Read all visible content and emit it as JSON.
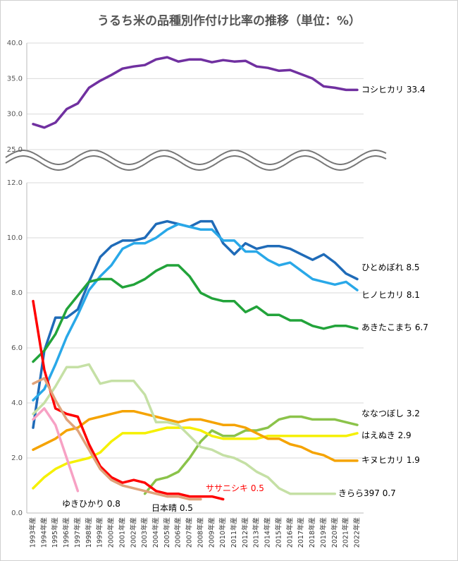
{
  "chart_data": [
    {
      "type": "line",
      "title": "うるち米の品種別作付け比率の推移（単位：%）",
      "ylim": [
        25,
        40
      ],
      "yticks": [
        {
          "value": 25,
          "label": "25.0"
        },
        {
          "value": 30,
          "label": "30.0"
        },
        {
          "value": 35,
          "label": "35.0"
        },
        {
          "value": 40,
          "label": "40.0"
        }
      ],
      "grid": true,
      "series": [
        {
          "name": "コシヒカリ",
          "color": "#7030a0",
          "values": [
            28.6,
            28.1,
            28.8,
            30.7,
            31.5,
            33.7,
            34.7,
            35.5,
            36.4,
            36.7,
            36.9,
            37.7,
            38.0,
            37.4,
            37.7,
            37.7,
            37.3,
            37.6,
            37.4,
            37.5,
            36.7,
            36.5,
            36.1,
            36.2,
            35.6,
            35.0,
            33.9,
            33.7,
            33.4,
            33.4
          ]
        }
      ]
    },
    {
      "type": "line",
      "categories": [
        "1993年産",
        "1994年産",
        "1995年産",
        "1996年産",
        "1997年産",
        "1998年産",
        "1999年産",
        "2000年産",
        "2001年産",
        "2002年産",
        "2003年産",
        "2004年産",
        "2005年産",
        "2006年産",
        "2007年産",
        "2008年産",
        "2009年産",
        "2010年産",
        "2011年産",
        "2012年産",
        "2013年産",
        "2014年産",
        "2015年産",
        "2016年産",
        "2017年産",
        "2018年産",
        "2019年産",
        "2020年産",
        "2021年産",
        "2022年産"
      ],
      "ylim": [
        0,
        12
      ],
      "yticks": [
        {
          "value": 0,
          "label": "0.0"
        },
        {
          "value": 2,
          "label": "2.0"
        },
        {
          "value": 4,
          "label": "4.0"
        },
        {
          "value": 6,
          "label": "6.0"
        },
        {
          "value": 8,
          "label": "8.0"
        },
        {
          "value": 10,
          "label": "10.0"
        },
        {
          "value": 12,
          "label": "12.0"
        }
      ],
      "grid": true,
      "series": [
        {
          "name": "ひとめぼれ",
          "color": "#1f6bb8",
          "values": [
            3.1,
            5.9,
            7.1,
            7.1,
            7.4,
            8.4,
            9.3,
            9.7,
            9.9,
            9.9,
            10.0,
            10.5,
            10.6,
            10.5,
            10.4,
            10.6,
            10.6,
            9.8,
            9.4,
            9.8,
            9.6,
            9.7,
            9.7,
            9.6,
            9.4,
            9.2,
            9.4,
            9.1,
            8.7,
            8.5
          ]
        },
        {
          "name": "ヒノヒカリ",
          "color": "#29a8e8",
          "values": [
            4.1,
            4.5,
            5.4,
            6.4,
            7.2,
            8.1,
            8.6,
            9.0,
            9.6,
            9.8,
            9.8,
            10.0,
            10.3,
            10.5,
            10.4,
            10.3,
            10.3,
            9.9,
            9.9,
            9.5,
            9.5,
            9.2,
            9.0,
            9.1,
            8.8,
            8.5,
            8.4,
            8.3,
            8.4,
            8.1
          ]
        },
        {
          "name": "あきたこまち",
          "color": "#22a33a",
          "values": [
            5.5,
            5.9,
            6.5,
            7.4,
            7.9,
            8.4,
            8.5,
            8.5,
            8.2,
            8.3,
            8.5,
            8.8,
            9.0,
            9.0,
            8.6,
            8.0,
            7.8,
            7.7,
            7.7,
            7.3,
            7.5,
            7.2,
            7.2,
            7.0,
            7.0,
            6.8,
            6.7,
            6.8,
            6.8,
            6.7
          ]
        },
        {
          "name": "ななつぼし",
          "color": "#8bc34a",
          "values": [
            null,
            null,
            null,
            null,
            null,
            null,
            null,
            null,
            null,
            null,
            0.7,
            1.2,
            1.3,
            1.5,
            2.0,
            2.6,
            3.0,
            2.8,
            2.8,
            3.0,
            3.0,
            3.1,
            3.4,
            3.5,
            3.5,
            3.4,
            3.4,
            3.4,
            3.3,
            3.2
          ]
        },
        {
          "name": "はえぬき",
          "color": "#f5f000",
          "values": [
            0.9,
            1.3,
            1.6,
            1.8,
            1.9,
            2.0,
            2.2,
            2.6,
            2.9,
            2.9,
            2.9,
            3.0,
            3.1,
            3.1,
            3.1,
            3.0,
            2.8,
            2.7,
            2.7,
            2.7,
            2.7,
            2.8,
            2.8,
            2.8,
            2.8,
            2.8,
            2.8,
            2.8,
            2.8,
            2.9
          ]
        },
        {
          "name": "キヌヒカリ",
          "color": "#f5a300",
          "values": [
            2.3,
            2.5,
            2.7,
            3.0,
            3.1,
            3.4,
            3.5,
            3.6,
            3.7,
            3.7,
            3.6,
            3.5,
            3.4,
            3.3,
            3.4,
            3.4,
            3.3,
            3.2,
            3.2,
            3.1,
            2.9,
            2.7,
            2.7,
            2.5,
            2.4,
            2.2,
            2.1,
            1.9,
            1.9,
            1.9
          ]
        },
        {
          "name": "きらら397",
          "color": "#c5e0a5",
          "values": [
            3.6,
            4.0,
            4.6,
            5.3,
            5.3,
            5.4,
            4.7,
            4.8,
            4.8,
            4.8,
            4.3,
            3.3,
            3.3,
            3.2,
            2.8,
            2.4,
            2.3,
            2.1,
            2.0,
            1.8,
            1.5,
            1.3,
            0.9,
            0.7,
            0.7,
            0.7,
            0.7,
            0.7,
            null,
            null
          ]
        },
        {
          "name": "ササニシキ",
          "color": "#ff0000",
          "values": [
            7.7,
            5.2,
            3.8,
            3.6,
            3.5,
            2.5,
            1.7,
            1.3,
            1.1,
            1.2,
            1.1,
            0.8,
            0.7,
            0.7,
            0.6,
            0.6,
            0.6,
            0.5,
            null,
            null,
            null,
            null,
            null,
            null,
            null,
            null,
            null,
            null,
            null,
            null
          ]
        },
        {
          "name": "日本晴",
          "color": "#e0a37a",
          "values": [
            4.7,
            4.9,
            4.1,
            3.4,
            3.0,
            2.3,
            1.6,
            1.2,
            1.0,
            0.9,
            0.8,
            0.7,
            0.6,
            0.6,
            0.5,
            0.5,
            null,
            null,
            null,
            null,
            null,
            null,
            null,
            null,
            null,
            null,
            null,
            null,
            null,
            null
          ]
        },
        {
          "name": "ゆきひかり",
          "color": "#f7a1c4",
          "values": [
            3.4,
            3.8,
            3.2,
            2.0,
            0.8,
            null,
            null,
            null,
            null,
            null,
            null,
            null,
            null,
            null,
            null,
            null,
            null,
            null,
            null,
            null,
            null,
            null,
            null,
            null,
            null,
            null,
            null,
            null,
            null,
            null
          ]
        }
      ]
    }
  ]
}
